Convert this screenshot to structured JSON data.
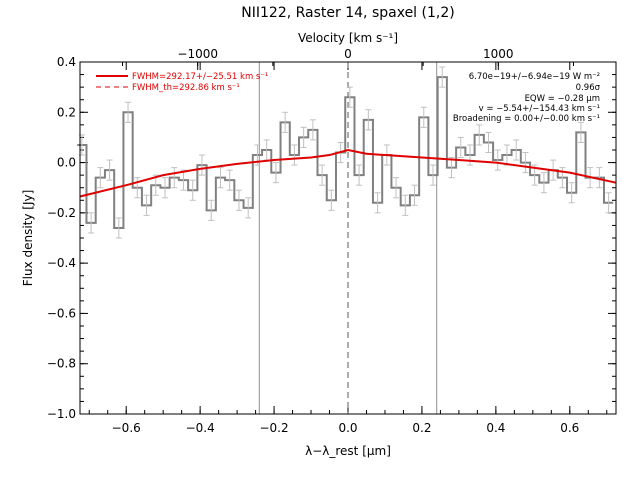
{
  "chart_data": {
    "type": "line",
    "title": "NII122, Raster 14, spaxel (1,2)",
    "xlabel_bottom": "λ−λ_rest [μm]",
    "xlabel_top": "Velocity [km s⁻¹]",
    "ylabel": "Flux density [Jy]",
    "xlim": [
      -0.725,
      0.725
    ],
    "ylim": [
      -1.0,
      0.4
    ],
    "x_ticks": [
      -0.6,
      -0.4,
      -0.2,
      0.0,
      0.2,
      0.4,
      0.6
    ],
    "x_tick_labels": [
      "−0.6",
      "−0.4",
      "−0.2",
      "0.0",
      "0.2",
      "0.4",
      "0.6"
    ],
    "y_ticks": [
      -1.0,
      -0.8,
      -0.6,
      -0.4,
      -0.2,
      0.0,
      0.2,
      0.4
    ],
    "y_tick_labels": [
      "−1.0",
      "−0.8",
      "−0.6",
      "−0.4",
      "−0.2",
      "0.0",
      "0.2",
      "0.4"
    ],
    "top_ticks_velocity": [
      -1000,
      0,
      1000
    ],
    "top_tick_labels": [
      "−1000",
      "0",
      "1000"
    ],
    "grid": false,
    "vertical_lines": [
      -0.24,
      0.24
    ],
    "center_line": 0.0,
    "legend": {
      "placement": "top-left",
      "entries": [
        {
          "label": "FWHM=292.17+/−25.51 km s⁻¹",
          "style": "solid",
          "color": "#e00000"
        },
        {
          "label": "FWHM_th=292.86 km s⁻¹",
          "style": "dashed",
          "color": "#e00000"
        }
      ]
    },
    "annotations": [
      "6.70e−19+/−6.94e−19 W m⁻²",
      "0.96σ",
      "EQW = −0.28 μm",
      "v = −5.54+/−154.43 km s⁻¹",
      "Broadening = 0.00+/−0.00 km s⁻¹"
    ],
    "series": [
      {
        "style": "steps",
        "color": "#808080",
        "x": [
          -0.72,
          -0.695,
          -0.67,
          -0.645,
          -0.62,
          -0.595,
          -0.57,
          -0.545,
          -0.52,
          -0.495,
          -0.47,
          -0.445,
          -0.42,
          -0.395,
          -0.37,
          -0.345,
          -0.32,
          -0.295,
          -0.27,
          -0.245,
          -0.22,
          -0.195,
          -0.17,
          -0.145,
          -0.12,
          -0.095,
          -0.07,
          -0.045,
          -0.02,
          0.005,
          0.03,
          0.055,
          0.08,
          0.105,
          0.13,
          0.155,
          0.18,
          0.205,
          0.23,
          0.255,
          0.28,
          0.305,
          0.33,
          0.355,
          0.38,
          0.405,
          0.43,
          0.455,
          0.48,
          0.505,
          0.53,
          0.555,
          0.58,
          0.605,
          0.63,
          0.655,
          0.68,
          0.705
        ],
        "y": [
          0.07,
          -0.24,
          -0.06,
          -0.03,
          -0.26,
          0.2,
          -0.1,
          -0.17,
          -0.09,
          -0.1,
          -0.06,
          -0.07,
          -0.11,
          -0.01,
          -0.19,
          -0.06,
          -0.07,
          -0.15,
          -0.18,
          0.03,
          0.05,
          -0.04,
          0.16,
          0.03,
          0.1,
          0.13,
          -0.05,
          -0.15,
          0.04,
          0.26,
          -0.05,
          0.17,
          -0.16,
          0.03,
          -0.1,
          -0.17,
          -0.13,
          0.18,
          -0.05,
          0.34,
          -0.02,
          0.06,
          0.03,
          0.11,
          0.08,
          0.01,
          0.03,
          0.05,
          0.0,
          -0.05,
          -0.08,
          -0.03,
          -0.06,
          -0.12,
          0.12,
          -0.06,
          -0.06,
          -0.16
        ]
      },
      {
        "style": "line",
        "color": "#e00000",
        "x": [
          -0.725,
          -0.6,
          -0.5,
          -0.4,
          -0.3,
          -0.2,
          -0.1,
          -0.05,
          0.0,
          0.05,
          0.1,
          0.2,
          0.3,
          0.4,
          0.5,
          0.6,
          0.725
        ],
        "y": [
          -0.135,
          -0.09,
          -0.05,
          -0.025,
          -0.005,
          0.01,
          0.02,
          0.03,
          0.05,
          0.035,
          0.03,
          0.02,
          0.01,
          0.0,
          -0.02,
          -0.04,
          -0.08
        ]
      }
    ]
  }
}
